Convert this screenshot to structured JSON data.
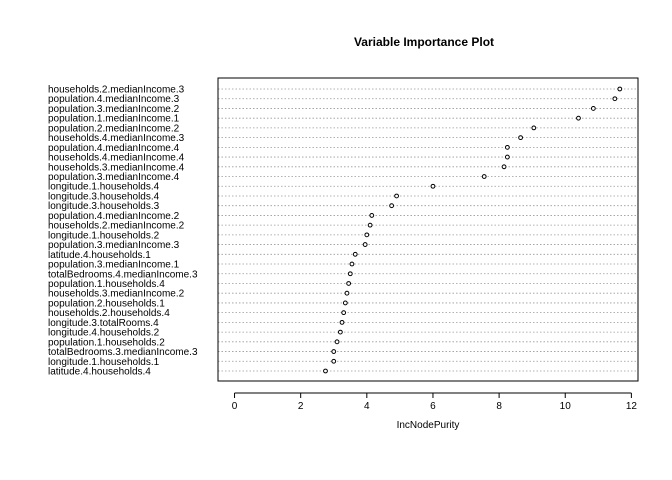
{
  "chart_data": {
    "type": "scatter",
    "title": "Variable Importance Plot",
    "xlabel": "IncNodePurity",
    "ylabel": "",
    "xlim": [
      -0.5,
      12.2
    ],
    "xticks": [
      0,
      2,
      4,
      6,
      8,
      10,
      12
    ],
    "grid": "horizontal-dotted",
    "categories": [
      "households.2.medianIncome.3",
      "population.4.medianIncome.3",
      "population.3.medianIncome.2",
      "population.1.medianIncome.1",
      "population.2.medianIncome.2",
      "households.4.medianIncome.3",
      "population.4.medianIncome.4",
      "households.4.medianIncome.4",
      "households.3.medianIncome.4",
      "population.3.medianIncome.4",
      "longitude.1.households.4",
      "longitude.3.households.4",
      "longitude.3.households.3",
      "population.4.medianIncome.2",
      "households.2.medianIncome.2",
      "longitude.1.households.2",
      "population.3.medianIncome.3",
      "latitude.4.households.1",
      "population.3.medianIncome.1",
      "totalBedrooms.4.medianIncome.3",
      "population.1.households.4",
      "households.3.medianIncome.2",
      "population.2.households.1",
      "households.2.households.4",
      "longitude.3.totalRooms.4",
      "longitude.4.households.2",
      "population.1.households.2",
      "totalBedrooms.3.medianIncome.3",
      "longitude.1.households.1",
      "latitude.4.households.4"
    ],
    "values": [
      11.65,
      11.5,
      10.85,
      10.4,
      9.05,
      8.65,
      8.25,
      8.25,
      8.15,
      7.55,
      6.0,
      4.9,
      4.75,
      4.15,
      4.1,
      4.0,
      3.95,
      3.65,
      3.55,
      3.5,
      3.45,
      3.4,
      3.35,
      3.3,
      3.25,
      3.2,
      3.1,
      3.0,
      3.0,
      2.75
    ]
  }
}
